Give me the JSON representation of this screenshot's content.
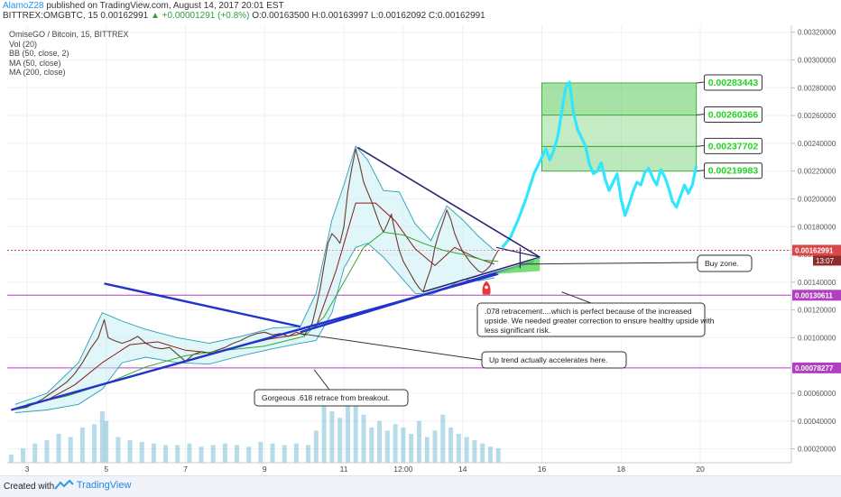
{
  "header": {
    "author": "AlamoZ28",
    "published": "published on TradingView.com, August 14, 2017 20:01 EST",
    "symbol": "BITTREX:OMGBTC, 15",
    "price": "0.00162991",
    "change": "▲ +0.00001291 (+0.8%)",
    "ohlc": "O:0.00163500 H:0.00163997 L:0.00162092 C:0.00162991"
  },
  "legend": {
    "title": "OmiseGO / Bitcoin, 15, BITTREX",
    "indicators": [
      "Vol (20)",
      "BB (50, close, 2)",
      "MA (50, close)",
      "MA (200, close)"
    ]
  },
  "footer": {
    "created": "Created with",
    "brand": "TradingView"
  },
  "colors": {
    "price_line": "#6b3a2e",
    "bollinger": "#2a9fb5",
    "bollinger_fill": "#c8eef2",
    "ma50": "#8b1a1a",
    "ma200": "#2eaa2e",
    "projection": "#33e6ff",
    "trendline": "#2233cc",
    "triangle_line": "#2b2270",
    "target_zone": "#5dcb5d",
    "target_label": "#22d422",
    "support_line": "#b040c0",
    "current_price_line": "#d94848",
    "volume": "#79c0d6"
  },
  "chart_data": {
    "type": "line",
    "title": "OmiseGO / Bitcoin, 15, BITTREX",
    "x_ticks": [
      "3",
      "5",
      "7",
      "9",
      "11",
      "12:00",
      "14",
      "16",
      "18",
      "20"
    ],
    "y_ticks": [
      "0.00320000",
      "0.00300000",
      "0.00280000",
      "0.00260000",
      "0.00240000",
      "0.00220000",
      "0.00200000",
      "0.00180000",
      "0.00160000",
      "0.00140000",
      "0.00120000",
      "0.00100000",
      "0.00080000",
      "0.00060000",
      "0.00040000",
      "0.00020000"
    ],
    "ylim": [
      0.0001,
      0.00325
    ],
    "xlim": [
      2.5,
      22.3
    ],
    "series": [
      {
        "kind": "price",
        "x": [
          2.6,
          2.8,
          3.0,
          3.2,
          3.4,
          3.6,
          3.8,
          4.0,
          4.2,
          4.4,
          4.6,
          4.8,
          4.95,
          5.05,
          5.2,
          5.4,
          5.6,
          5.8,
          6.0,
          6.2,
          6.4,
          6.6,
          6.8,
          7.0,
          7.2,
          7.4,
          7.6,
          7.8,
          8.0,
          8.2,
          8.4,
          8.6,
          8.8,
          9.0,
          9.2,
          9.4,
          9.6,
          9.8,
          10.0,
          10.1,
          10.2,
          10.3,
          10.4,
          10.5,
          10.6,
          10.7,
          10.8,
          10.9,
          11.0,
          11.1,
          11.2,
          11.3,
          11.4,
          11.5,
          11.6,
          11.7,
          11.8,
          11.9,
          12.0,
          12.1,
          12.2,
          12.3,
          12.4,
          12.5,
          12.6,
          12.7,
          12.8,
          12.9,
          13.0,
          13.1,
          13.2,
          13.3,
          13.4,
          13.5,
          13.6,
          13.7,
          13.8,
          13.9,
          14.0,
          14.1,
          14.2,
          14.3,
          14.4,
          14.5,
          14.6,
          14.7,
          14.8,
          14.9
        ],
        "y": [
          0.00048,
          0.00049,
          0.0005,
          0.00053,
          0.00056,
          0.0006,
          0.00064,
          0.00068,
          0.00074,
          0.00082,
          0.00092,
          0.001,
          0.00113,
          0.001,
          0.00098,
          0.00096,
          0.00098,
          0.00101,
          0.00096,
          0.00093,
          0.00092,
          0.00093,
          0.00088,
          0.00083,
          0.00088,
          0.0009,
          0.00089,
          0.00091,
          0.00093,
          0.00096,
          0.00098,
          0.00101,
          0.00103,
          0.00104,
          0.00102,
          0.00103,
          0.00101,
          0.00104,
          0.00102,
          0.00106,
          0.0011,
          0.00122,
          0.00135,
          0.00152,
          0.00168,
          0.00175,
          0.00172,
          0.00168,
          0.0018,
          0.00205,
          0.00222,
          0.00236,
          0.00225,
          0.00212,
          0.00205,
          0.00198,
          0.0019,
          0.00182,
          0.00176,
          0.00182,
          0.00189,
          0.00175,
          0.00163,
          0.00155,
          0.0015,
          0.00145,
          0.0014,
          0.00136,
          0.00133,
          0.00142,
          0.0015,
          0.00165,
          0.00175,
          0.00183,
          0.00192,
          0.00185,
          0.00175,
          0.00168,
          0.00162,
          0.00158,
          0.00154,
          0.00151,
          0.00148,
          0.00147,
          0.00149,
          0.00152,
          0.00158,
          0.00163
        ]
      },
      {
        "kind": "projection",
        "x": [
          15.0,
          15.2,
          15.4,
          15.6,
          15.8,
          16.0,
          16.1,
          16.2,
          16.3,
          16.4,
          16.5,
          16.6,
          16.7,
          16.8,
          16.9,
          17.0,
          17.1,
          17.2,
          17.3,
          17.4,
          17.5,
          17.6,
          17.7,
          17.8,
          17.9,
          18.0,
          18.1,
          18.2,
          18.3,
          18.4,
          18.5,
          18.6,
          18.7,
          18.8,
          18.9,
          19.0,
          19.1,
          19.2,
          19.3,
          19.4,
          19.5,
          19.6,
          19.7,
          19.8,
          19.9
        ],
        "y": [
          0.00165,
          0.00172,
          0.00185,
          0.002,
          0.00218,
          0.0023,
          0.00236,
          0.00228,
          0.00235,
          0.00245,
          0.00262,
          0.0028,
          0.00284,
          0.00262,
          0.0025,
          0.00244,
          0.00238,
          0.00225,
          0.00218,
          0.0022,
          0.00226,
          0.00214,
          0.00206,
          0.00212,
          0.00218,
          0.002,
          0.00188,
          0.00196,
          0.00205,
          0.00212,
          0.0021,
          0.00219,
          0.00222,
          0.00215,
          0.0021,
          0.00221,
          0.00216,
          0.00208,
          0.00198,
          0.00194,
          0.00202,
          0.0021,
          0.00204,
          0.0021,
          0.00224
        ]
      },
      {
        "kind": "ma50",
        "x": [
          2.8,
          3.5,
          4.2,
          4.9,
          5.6,
          6.3,
          7.0,
          7.7,
          8.4,
          9.1,
          9.8,
          10.3,
          10.8,
          11.3,
          11.8,
          12.3,
          12.8,
          13.3,
          13.8,
          14.3,
          14.8
        ],
        "y": [
          0.00049,
          0.00055,
          0.00066,
          0.00082,
          0.00095,
          0.00097,
          0.00091,
          0.00089,
          0.00094,
          0.00099,
          0.00102,
          0.00108,
          0.00148,
          0.00197,
          0.00197,
          0.00184,
          0.00164,
          0.00152,
          0.00165,
          0.00158,
          0.00153
        ]
      },
      {
        "kind": "ma200",
        "x": [
          3.0,
          4.0,
          5.0,
          6.0,
          7.0,
          8.0,
          9.0,
          10.0,
          10.5,
          11.0,
          11.5,
          12.0,
          12.5,
          13.0,
          13.5,
          14.0,
          14.5,
          14.9
        ],
        "y": [
          0.00052,
          0.00058,
          0.00067,
          0.00079,
          0.00087,
          0.00091,
          0.00094,
          0.00101,
          0.00115,
          0.0014,
          0.00165,
          0.00176,
          0.00174,
          0.00168,
          0.00163,
          0.0016,
          0.00156,
          0.00155
        ]
      }
    ],
    "volume": {
      "x": [
        2.6,
        2.9,
        3.2,
        3.5,
        3.8,
        4.1,
        4.4,
        4.7,
        4.9,
        5.0,
        5.3,
        5.6,
        5.9,
        6.2,
        6.5,
        6.8,
        7.1,
        7.4,
        7.7,
        8.0,
        8.3,
        8.6,
        8.9,
        9.2,
        9.5,
        9.8,
        10.1,
        10.3,
        10.5,
        10.7,
        10.9,
        11.1,
        11.3,
        11.5,
        11.7,
        11.9,
        12.1,
        12.3,
        12.5,
        12.7,
        12.9,
        13.1,
        13.3,
        13.5,
        13.7,
        13.9,
        14.1,
        14.3,
        14.5,
        14.7,
        14.9
      ],
      "y": [
        5e-05,
        9e-05,
        0.00012,
        0.00014,
        0.00018,
        0.00016,
        0.00022,
        0.00024,
        0.00032,
        0.00026,
        0.00016,
        0.00014,
        0.00013,
        0.00012,
        0.00011,
        0.00011,
        0.00012,
        0.0001,
        0.00011,
        0.00012,
        0.00011,
        0.0001,
        0.00013,
        0.00012,
        0.00011,
        0.00012,
        0.00011,
        0.0002,
        0.00038,
        0.00032,
        0.00028,
        0.00042,
        0.00044,
        0.0003,
        0.00022,
        0.00026,
        0.0002,
        0.00024,
        0.00022,
        0.00018,
        0.00026,
        0.00016,
        0.0002,
        0.0003,
        0.00022,
        0.00018,
        0.00016,
        0.00014,
        0.00012,
        0.0001,
        9e-05
      ]
    },
    "bollinger_upper": {
      "x": [
        2.7,
        3.5,
        4.3,
        4.9,
        5.4,
        6.0,
        6.8,
        7.6,
        8.4,
        9.2,
        9.9,
        10.3,
        10.7,
        11.0,
        11.3,
        11.6,
        12.0,
        12.4,
        12.8,
        13.2,
        13.6,
        14.0,
        14.4,
        14.8
      ],
      "y": [
        0.00052,
        0.0006,
        0.00082,
        0.00118,
        0.00112,
        0.00106,
        0.001,
        0.00096,
        0.00101,
        0.00107,
        0.00108,
        0.00132,
        0.00185,
        0.0021,
        0.00238,
        0.00228,
        0.00206,
        0.00205,
        0.00182,
        0.0017,
        0.00195,
        0.00185,
        0.00173,
        0.00163
      ]
    },
    "bollinger_lower": {
      "x": [
        2.7,
        3.5,
        4.3,
        4.9,
        5.4,
        6.0,
        6.8,
        7.6,
        8.4,
        9.2,
        9.9,
        10.3,
        10.7,
        11.0,
        11.3,
        11.6,
        12.0,
        12.4,
        12.8,
        13.2,
        13.6,
        14.0,
        14.4,
        14.8
      ],
      "y": [
        0.00046,
        0.00048,
        0.00052,
        0.00063,
        0.00082,
        0.00086,
        0.00082,
        0.00081,
        0.00087,
        0.00092,
        0.00096,
        0.00098,
        0.00118,
        0.0015,
        0.00165,
        0.00168,
        0.00158,
        0.00145,
        0.00132,
        0.00131,
        0.00136,
        0.00142,
        0.00141,
        0.00143
      ]
    },
    "trendlines": [
      {
        "name": "ascending-support",
        "x": [
          2.6,
          14.9
        ],
        "y": [
          0.00048,
          0.00146
        ]
      },
      {
        "name": "descending-resistance-1",
        "x": [
          4.95,
          9.9
        ],
        "y": [
          0.00139,
          0.00108
        ]
      },
      {
        "name": "triangle-top",
        "x": [
          11.35,
          15.95
        ],
        "y": [
          0.00237,
          0.00158
        ]
      },
      {
        "name": "triangle-bottom",
        "x": [
          13.0,
          15.95
        ],
        "y": [
          0.00133,
          0.00158
        ]
      },
      {
        "name": "lower-wedge",
        "x": [
          9.9,
          15.8
        ],
        "y": [
          0.00104,
          0.00155
        ]
      }
    ],
    "horizontal_levels": [
      {
        "name": "resistance",
        "y": 0.00130611,
        "label": "0.00130611",
        "style": "solid"
      },
      {
        "name": "support",
        "y": 0.00078277,
        "label": "0.00078277",
        "style": "solid"
      },
      {
        "name": "current",
        "y": 0.00162991,
        "label": "0.00162991",
        "sublabel": "13:07",
        "style": "dotted"
      }
    ],
    "target_zones": [
      {
        "label": "0.00283443",
        "y_top": 0.00283443,
        "y_bottom": 0.00260366
      },
      {
        "label": "0.00260366",
        "y_top": 0.00260366,
        "y_bottom": 0.00237702
      },
      {
        "label": "0.00237702",
        "y_top": 0.00237702,
        "y_bottom": 0.00219983
      },
      {
        "label": "0.00219983",
        "y_top": 0.00219983,
        "y_bottom": 0.00219983
      }
    ],
    "annotations": [
      {
        "text": "Buy zone."
      },
      {
        "text": ".078 retracement....which is perfect because of the increased upside.  We needed greater correction to ensure healthy upside with less significant risk."
      },
      {
        "text": "Up trend actually accelerates here."
      },
      {
        "text": "Gorgeous .618 retrace from breakout."
      }
    ]
  }
}
